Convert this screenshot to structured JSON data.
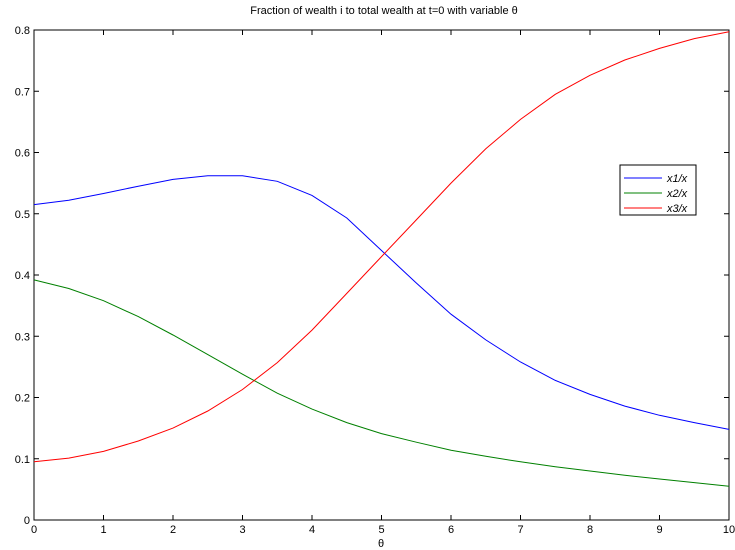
{
  "chart_data": {
    "type": "line",
    "title": "Fraction of wealth i to total wealth at t=0 with variable θ",
    "xlabel": "θ",
    "ylabel": "",
    "xlim": [
      0,
      10
    ],
    "ylim": [
      0,
      0.8
    ],
    "xticks": [
      0,
      1,
      2,
      3,
      4,
      5,
      6,
      7,
      8,
      9,
      10
    ],
    "yticks": [
      0,
      0.1,
      0.2,
      0.3,
      0.4,
      0.5,
      0.6,
      0.7,
      0.8
    ],
    "grid": false,
    "legend_position": "right",
    "x": [
      0,
      0.5,
      1,
      1.5,
      2,
      2.5,
      3,
      3.5,
      4,
      4.5,
      5,
      5.5,
      6,
      6.5,
      7,
      7.5,
      8,
      8.5,
      9,
      9.5,
      10
    ],
    "series": [
      {
        "name": "x1/x",
        "color": "#0000ff",
        "values": [
          0.515,
          0.522,
          0.533,
          0.545,
          0.556,
          0.562,
          0.562,
          0.553,
          0.53,
          0.493,
          0.44,
          0.387,
          0.336,
          0.294,
          0.258,
          0.228,
          0.205,
          0.186,
          0.171,
          0.159,
          0.148
        ]
      },
      {
        "name": "x2/x",
        "color": "#008000",
        "values": [
          0.392,
          0.378,
          0.358,
          0.332,
          0.302,
          0.27,
          0.238,
          0.207,
          0.181,
          0.159,
          0.141,
          0.127,
          0.114,
          0.104,
          0.095,
          0.087,
          0.08,
          0.073,
          0.067,
          0.061,
          0.055
        ]
      },
      {
        "name": "x3/x",
        "color": "#ff0000",
        "values": [
          0.095,
          0.101,
          0.112,
          0.129,
          0.15,
          0.178,
          0.213,
          0.257,
          0.31,
          0.37,
          0.43,
          0.49,
          0.55,
          0.606,
          0.654,
          0.695,
          0.726,
          0.751,
          0.77,
          0.786,
          0.797
        ]
      }
    ]
  }
}
